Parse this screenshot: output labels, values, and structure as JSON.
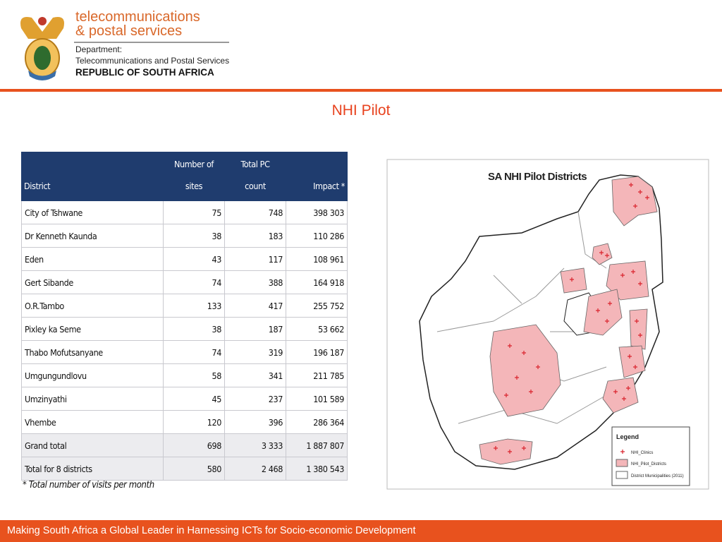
{
  "header": {
    "brand_line1": "telecommunications",
    "brand_line2": "& postal services",
    "department_label": "Department:",
    "department_name": "Telecommunications and Postal Services",
    "country": "REPUBLIC OF SOUTH AFRICA"
  },
  "title": "NHI Pilot",
  "table": {
    "columns": [
      "District",
      "Number of\nsites",
      "Total PC\ncount",
      "Impact *"
    ],
    "rows": [
      [
        "City of Tshwane",
        "75",
        "748",
        "398 303"
      ],
      [
        "Dr Kenneth Kaunda",
        "38",
        "183",
        "110 286"
      ],
      [
        "Eden",
        "43",
        "117",
        "108 961"
      ],
      [
        "Gert Sibande",
        "74",
        "388",
        "164 918"
      ],
      [
        "O.R.Tambo",
        "133",
        "417",
        "255 752"
      ],
      [
        "Pixley ka Seme",
        "38",
        "187",
        "53 662"
      ],
      [
        "Thabo Mofutsanyane",
        "74",
        "319",
        "196 187"
      ],
      [
        "Umgungundlovu",
        "58",
        "341",
        "211 785"
      ],
      [
        "Umzinyathi",
        "45",
        "237",
        "101 589"
      ],
      [
        "Vhembe",
        "120",
        "396",
        "286 364"
      ],
      [
        "Grand total",
        "698",
        "3 333",
        "1 887 807"
      ],
      [
        "Total for 8 districts",
        "580",
        "2 468",
        "1 380 543"
      ]
    ],
    "footnote": "* Total number of visits per month"
  },
  "map": {
    "title": "SA NHI Pilot Districts",
    "legend_title": "Legend",
    "legend_items": [
      "NHI_Clinics",
      "NHI_Pilot_Districts",
      "District Municipalities (2011)"
    ]
  },
  "footer": "Making South Africa a Global Leader in Harnessing ICTs for Socio-economic Development"
}
